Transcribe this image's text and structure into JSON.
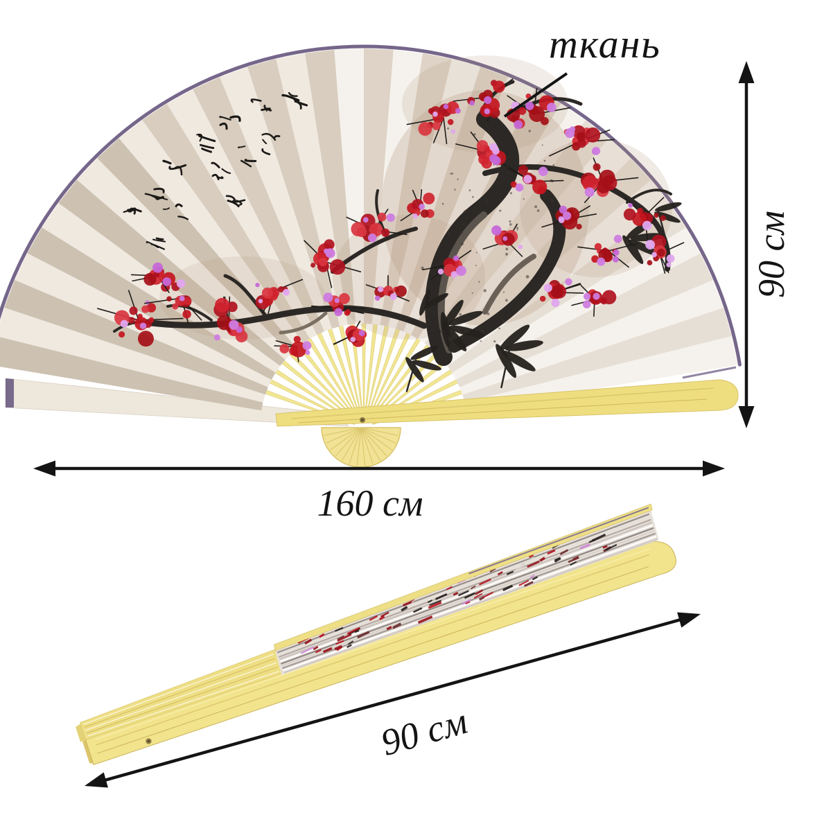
{
  "annotations": {
    "fabric_callout": {
      "label": "ткань"
    },
    "open_fan_height": {
      "label": "90 см"
    },
    "open_fan_width": {
      "label": "160 см"
    },
    "folded_fan_length": {
      "label": "90 см"
    }
  },
  "colors": {
    "background": "#ffffff",
    "annotation_ink": "#141414",
    "trim_purple": "#75668a",
    "bamboo_yellow": "#f1e38d",
    "bamboo_deep": "#d9c468",
    "blossom_red": "#c3161f",
    "blossom_pink": "#cf7ce0",
    "ink_black": "#2c2825",
    "pleat_beige": "#d8cdbe",
    "pleat_white": "#f4f1ec"
  }
}
